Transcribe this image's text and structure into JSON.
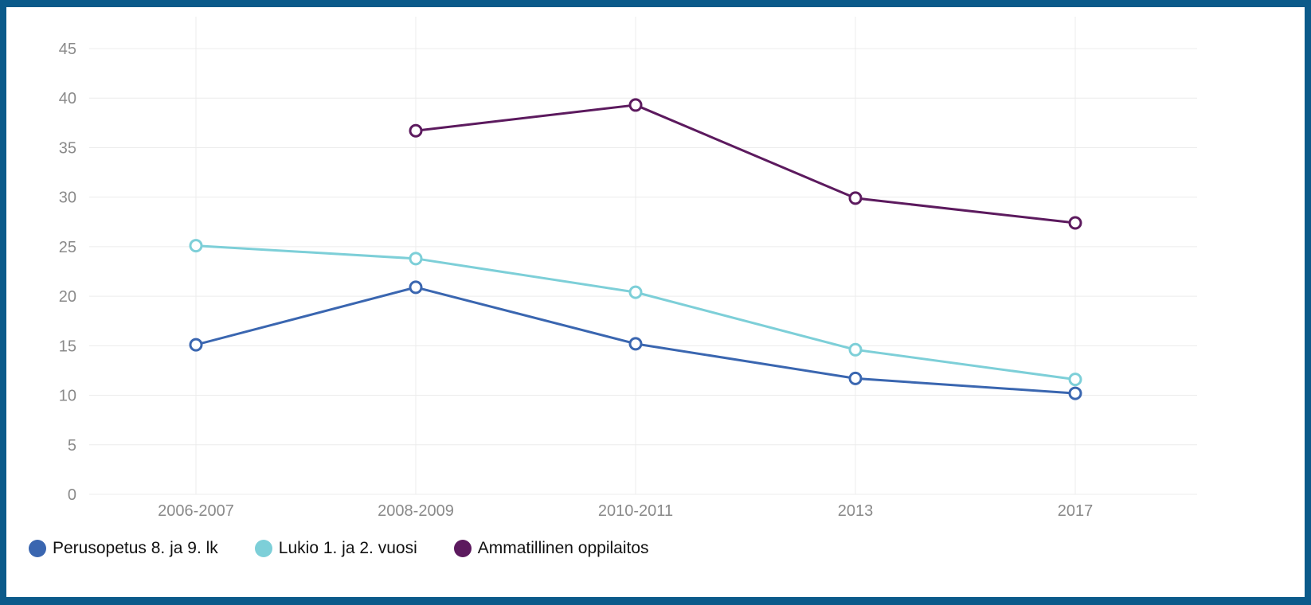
{
  "chart_data": {
    "type": "line",
    "categories": [
      "2006-2007",
      "2008-2009",
      "2010-2011",
      "2013",
      "2017"
    ],
    "y_ticks": [
      "0",
      "5",
      "10",
      "15",
      "20",
      "25",
      "30",
      "35",
      "40",
      "45"
    ],
    "ylim": [
      0,
      45
    ],
    "grid": true,
    "legend_position": "bottom-left",
    "series": [
      {
        "name": "Perusopetus 8. ja 9. lk",
        "color": "#3a66b0",
        "values": [
          15.1,
          20.9,
          15.2,
          11.7,
          10.2
        ]
      },
      {
        "name": "Lukio 1. ja 2. vuosi",
        "color": "#7dcfd8",
        "values": [
          25.1,
          23.8,
          20.4,
          14.6,
          11.6
        ]
      },
      {
        "name": "Ammatillinen oppilaitos",
        "color": "#5c1a5e",
        "values": [
          null,
          36.7,
          39.3,
          29.9,
          27.4
        ]
      }
    ]
  }
}
